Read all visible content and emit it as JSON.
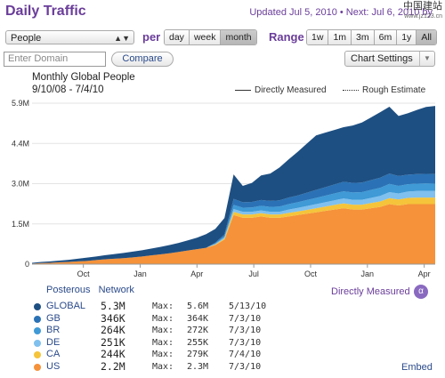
{
  "header": {
    "title": "Daily Traffic",
    "updated": "Updated Jul 5, 2010 • Next: Jul 6, 2010 by",
    "watermark": "中国建站",
    "watermark_sub": "www.jz123.cn"
  },
  "controls": {
    "metric_select": "People",
    "per_label": "per",
    "per_options": [
      "day",
      "week",
      "month"
    ],
    "per_selected": "month",
    "range_label": "Range",
    "range_options": [
      "1w",
      "1m",
      "3m",
      "6m",
      "1y",
      "All"
    ],
    "range_selected": "All",
    "domain_placeholder": "Enter Domain",
    "compare_label": "Compare",
    "chart_settings_label": "Chart Settings"
  },
  "chart_header": {
    "title": "Monthly Global People",
    "date_range": "9/10/08 - 7/4/10",
    "legend_measured": "Directly Measured",
    "legend_estimate": "Rough Estimate"
  },
  "chart_data": {
    "type": "area",
    "stacked": true,
    "x_labels": [
      "Oct",
      "Jan",
      "Apr",
      "Jul",
      "Oct",
      "Jan",
      "Apr"
    ],
    "y_ticks": [
      "0",
      "1.5M",
      "3.0M",
      "4.4M",
      "5.9M"
    ],
    "ylim": [
      0,
      5.9
    ],
    "x": [
      0,
      0.5,
      1,
      1.5,
      2,
      2.5,
      3,
      3.5,
      4,
      4.5,
      5,
      5.5,
      6,
      6.5,
      7,
      7.5,
      8,
      8.5,
      9,
      9.5,
      10,
      10.5,
      11,
      11.5,
      12,
      12.5,
      13,
      13.5,
      14,
      14.5,
      15,
      15.5,
      16,
      16.5,
      17,
      17.5,
      18,
      18.5,
      19,
      19.5,
      20,
      20.5,
      21,
      21.5,
      22
    ],
    "series": [
      {
        "name": "US",
        "color": "#f5923a",
        "values": [
          0.02,
          0.04,
          0.05,
          0.07,
          0.08,
          0.1,
          0.12,
          0.15,
          0.18,
          0.2,
          0.22,
          0.25,
          0.28,
          0.32,
          0.36,
          0.4,
          0.45,
          0.5,
          0.55,
          0.6,
          0.7,
          0.9,
          1.8,
          1.7,
          1.7,
          1.75,
          1.7,
          1.7,
          1.75,
          1.8,
          1.85,
          1.9,
          1.95,
          2.0,
          2.05,
          2.0,
          2.0,
          2.05,
          2.1,
          2.2,
          2.15,
          2.2,
          2.2,
          2.2,
          2.2
        ]
      },
      {
        "name": "CA",
        "color": "#f5c43a",
        "values": [
          0.0,
          0.0,
          0.0,
          0.0,
          0.0,
          0.0,
          0.0,
          0.0,
          0.0,
          0.0,
          0.0,
          0.0,
          0.0,
          0.0,
          0.0,
          0.0,
          0.0,
          0.0,
          0.0,
          0.0,
          0.02,
          0.04,
          0.12,
          0.12,
          0.12,
          0.12,
          0.12,
          0.12,
          0.13,
          0.13,
          0.14,
          0.15,
          0.16,
          0.17,
          0.18,
          0.18,
          0.18,
          0.19,
          0.2,
          0.22,
          0.22,
          0.23,
          0.24,
          0.24,
          0.24
        ]
      },
      {
        "name": "DE",
        "color": "#7fc0ee",
        "values": [
          0.0,
          0.0,
          0.0,
          0.0,
          0.0,
          0.0,
          0.0,
          0.0,
          0.0,
          0.0,
          0.0,
          0.0,
          0.0,
          0.0,
          0.0,
          0.0,
          0.0,
          0.0,
          0.0,
          0.0,
          0.02,
          0.04,
          0.1,
          0.1,
          0.1,
          0.1,
          0.1,
          0.1,
          0.12,
          0.13,
          0.14,
          0.15,
          0.16,
          0.17,
          0.18,
          0.18,
          0.18,
          0.19,
          0.2,
          0.22,
          0.22,
          0.23,
          0.24,
          0.25,
          0.25
        ]
      },
      {
        "name": "BR",
        "color": "#3f9ad6",
        "values": [
          0.0,
          0.0,
          0.0,
          0.0,
          0.0,
          0.0,
          0.0,
          0.0,
          0.0,
          0.0,
          0.0,
          0.0,
          0.0,
          0.0,
          0.0,
          0.0,
          0.0,
          0.0,
          0.0,
          0.0,
          0.02,
          0.05,
          0.15,
          0.15,
          0.16,
          0.17,
          0.18,
          0.19,
          0.2,
          0.21,
          0.22,
          0.23,
          0.24,
          0.25,
          0.26,
          0.27,
          0.28,
          0.29,
          0.3,
          0.3,
          0.28,
          0.27,
          0.27,
          0.27,
          0.26
        ]
      },
      {
        "name": "GB",
        "color": "#2a72b5",
        "values": [
          0.0,
          0.0,
          0.0,
          0.0,
          0.0,
          0.0,
          0.0,
          0.0,
          0.0,
          0.0,
          0.0,
          0.0,
          0.0,
          0.0,
          0.0,
          0.0,
          0.0,
          0.0,
          0.0,
          0.0,
          0.03,
          0.06,
          0.22,
          0.2,
          0.2,
          0.21,
          0.22,
          0.23,
          0.24,
          0.25,
          0.27,
          0.29,
          0.31,
          0.33,
          0.35,
          0.35,
          0.35,
          0.36,
          0.37,
          0.38,
          0.36,
          0.35,
          0.35,
          0.35,
          0.35
        ]
      },
      {
        "name": "GLOBAL",
        "color": "#1e4f82",
        "values": [
          0.03,
          0.04,
          0.05,
          0.06,
          0.08,
          0.1,
          0.12,
          0.13,
          0.15,
          0.17,
          0.19,
          0.21,
          0.23,
          0.25,
          0.27,
          0.3,
          0.33,
          0.37,
          0.42,
          0.5,
          0.5,
          0.6,
          0.9,
          0.6,
          0.7,
          0.9,
          1.0,
          1.2,
          1.4,
          1.6,
          1.8,
          2.0,
          2.0,
          2.0,
          2.0,
          2.1,
          2.2,
          2.3,
          2.4,
          2.45,
          2.2,
          2.25,
          2.35,
          2.45,
          2.5
        ]
      }
    ]
  },
  "table": {
    "tab1": "Posterous",
    "tab2": "Network",
    "mode": "Directly Measured",
    "mode_icon": "α",
    "rows": [
      {
        "name": "GLOBAL",
        "color": "#1e4f82",
        "value": "5.3M",
        "max_label": "Max:",
        "max": "5.6M",
        "date": "5/13/10"
      },
      {
        "name": "GB",
        "color": "#2a72b5",
        "value": "346K",
        "max_label": "Max:",
        "max": "364K",
        "date": "7/3/10"
      },
      {
        "name": "BR",
        "color": "#3f9ad6",
        "value": "264K",
        "max_label": "Max:",
        "max": "272K",
        "date": "7/3/10"
      },
      {
        "name": "DE",
        "color": "#7fc0ee",
        "value": "251K",
        "max_label": "Max:",
        "max": "255K",
        "date": "7/3/10"
      },
      {
        "name": "CA",
        "color": "#f5c43a",
        "value": "244K",
        "max_label": "Max:",
        "max": "279K",
        "date": "7/4/10"
      },
      {
        "name": "US",
        "color": "#f5923a",
        "value": "2.2M",
        "max_label": "Max:",
        "max": "2.3M",
        "date": "7/3/10"
      }
    ],
    "embed_label": "Embed"
  }
}
